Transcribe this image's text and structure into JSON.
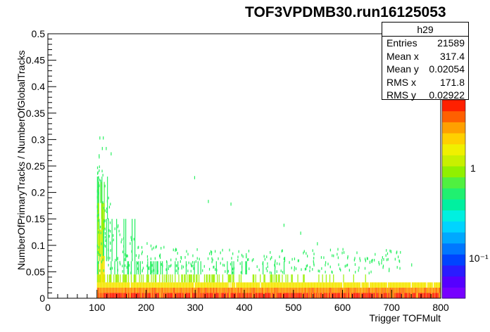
{
  "chart_data": {
    "type": "heatmap",
    "title": "TOF3VPDMB30.run16125053",
    "xlabel": "Trigger TOFMult",
    "ylabel": "NumberOfPrimaryTracks / NumberOfGlobalTracks",
    "xlim": [
      0,
      800
    ],
    "ylim": [
      0,
      0.5
    ],
    "x_ticks": [
      "0",
      "100",
      "200",
      "300",
      "400",
      "500",
      "600",
      "700",
      "800"
    ],
    "y_ticks": [
      "0",
      "0.05",
      "0.1",
      "0.15",
      "0.2",
      "0.25",
      "0.3",
      "0.35",
      "0.4",
      "0.45",
      "0.5"
    ],
    "z_scale": "log",
    "z_tick_labels": [
      "1",
      "10⁻¹"
    ],
    "grid": false,
    "stats": {
      "name": "h29",
      "rows": [
        {
          "label": "Entries",
          "value": "21589"
        },
        {
          "label": "Mean x",
          "value": "317.4"
        },
        {
          "label": "Mean y",
          "value": "0.02054"
        },
        {
          "label": "RMS x",
          "value": "171.8"
        },
        {
          "label": "RMS y",
          "value": "0.02922"
        }
      ]
    },
    "density_bands": [
      {
        "y_range": [
          0.0,
          0.01
        ],
        "x_range": [
          100,
          800
        ],
        "level": "high",
        "color": "#ff1a00"
      },
      {
        "y_range": [
          0.01,
          0.02
        ],
        "x_range": [
          100,
          800
        ],
        "level": "high",
        "color": "#ff8c00"
      },
      {
        "y_range": [
          0.02,
          0.03
        ],
        "x_range": [
          100,
          800
        ],
        "level": "medium-high",
        "color": "#f5e600"
      },
      {
        "y_range": [
          0.03,
          0.045
        ],
        "x_range": [
          100,
          650
        ],
        "level": "medium",
        "color": "#9cf000"
      },
      {
        "y_range": [
          0.045,
          0.07
        ],
        "x_range": [
          100,
          500
        ],
        "level": "low",
        "color": "#1cee5a"
      },
      {
        "y_range": [
          0.07,
          0.15
        ],
        "x_range": [
          100,
          200
        ],
        "level": "low",
        "color": "#1cee5a"
      },
      {
        "y_range": [
          0.15,
          0.23
        ],
        "x_range": [
          100,
          125
        ],
        "level": "very-low",
        "color": "#28f060"
      }
    ],
    "band_colors": [
      "#ff1a00",
      "#ff8c00",
      "#f5e600",
      "#9cf000",
      "#1cee5a"
    ],
    "palette": [
      "#7700ff",
      "#5500ff",
      "#2a1cff",
      "#0044ff",
      "#0077ff",
      "#00a8ff",
      "#00d4ff",
      "#00f0e0",
      "#00f0a0",
      "#20f070",
      "#50f040",
      "#90f000",
      "#c8f000",
      "#f0f000",
      "#ffd000",
      "#ffa000",
      "#ff6000",
      "#ff2000"
    ]
  }
}
